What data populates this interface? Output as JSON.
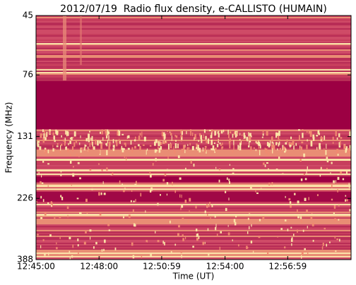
{
  "chart_data": {
    "type": "spectrogram",
    "title": "2012/07/19  Radio flux density, e-CALLISTO (HUMAIN)",
    "x_label": "Time (UT)",
    "y_label": "Frequency (MHz)",
    "xlim": [
      "12:45:00",
      "13:00:00"
    ],
    "xticks": [
      "12:45:00",
      "12:48:00",
      "12:50:59",
      "12:54:00",
      "12:56:59"
    ],
    "ylim": [
      45,
      388
    ],
    "y_scale": "log",
    "y_inverted": true,
    "yticks": [
      45,
      76,
      131,
      226,
      388
    ]
  }
}
